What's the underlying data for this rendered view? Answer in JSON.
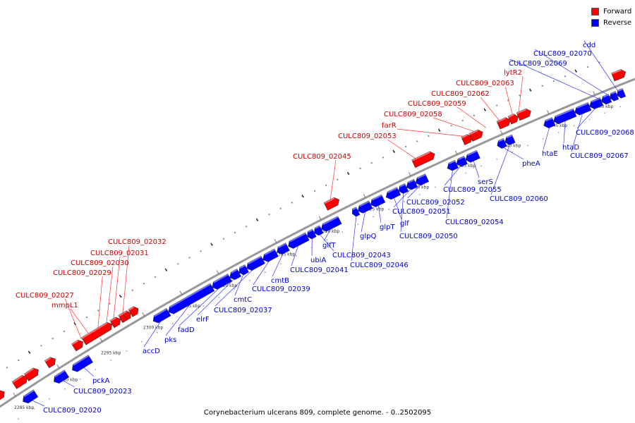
{
  "caption": "Corynebacterium ulcerans 809, complete genome. - 0..2502095",
  "legend": [
    {
      "label": "Forward",
      "color": "#ff0000"
    },
    {
      "label": "Reverse",
      "color": "#0000ff"
    }
  ],
  "colors": {
    "forward": "#ff0000",
    "reverse": "#0000ff",
    "forward_label": "#cc0000",
    "reverse_label": "#0000cc",
    "ruler": "#777777"
  },
  "ruler": {
    "ticks": [
      "2285 kbp",
      "2290 kbp",
      "2295 kbp",
      "2300 kbp",
      "2305 kbp",
      "2310 kbp",
      "2315 kbp",
      "2320 kbp",
      "2325 kbp",
      "2330 kbp",
      "2335 kbp",
      "2340 kbp",
      "2345 kbp",
      "2350 kbp"
    ]
  },
  "forward_genes": [
    "CULC809_02027",
    "mmpL1",
    "CULC809_02029",
    "CULC809_02030",
    "CULC809_02031",
    "CULC809_02032",
    "CULC809_02045",
    "CULC809_02053",
    "farR",
    "CULC809_02058",
    "CULC809_02059",
    "CULC809_02062",
    "CULC809_02063",
    "lytR2"
  ],
  "reverse_genes": [
    "CULC809_02020",
    "CULC809_02023",
    "pckA",
    "accD",
    "pks",
    "fadD",
    "elrF",
    "cmtC",
    "CULC809_02037",
    "CULC809_02039",
    "cmtB",
    "CULC809_02041",
    "ubiA",
    "CULC809_02043",
    "glfT",
    "CULC809_02046",
    "glpQ",
    "glpT",
    "glf",
    "CULC809_02050",
    "CULC809_02051",
    "CULC809_02052",
    "CULC809_02054",
    "CULC809_02055",
    "serS",
    "pheA",
    "CULC809_02060",
    "htaE",
    "htaD",
    "CULC809_02067",
    "CULC809_02068",
    "CULC809_02069",
    "CULC809_02070",
    "cdd"
  ]
}
